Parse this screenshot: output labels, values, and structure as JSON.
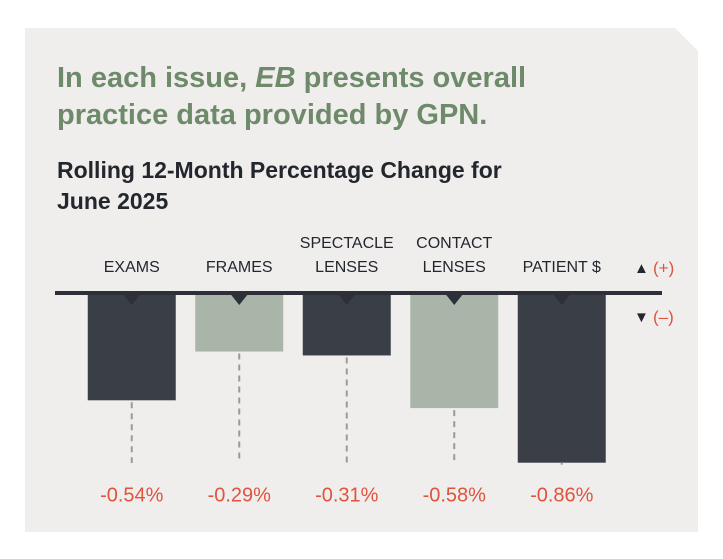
{
  "header": [
    "In each issue, ",
    "EB",
    " presents overall practice data provided by GPN."
  ],
  "chart_data": {
    "type": "bar",
    "title": "Rolling 12-Month Percentage Change for June 2025",
    "categories": [
      [
        "EXAMS"
      ],
      [
        "FRAMES"
      ],
      [
        "SPECTACLE",
        "LENSES"
      ],
      [
        "CONTACT",
        "LENSES"
      ],
      [
        "PATIENT $"
      ]
    ],
    "values": [
      -0.54,
      -0.29,
      -0.31,
      -0.58,
      -0.86
    ],
    "value_labels": [
      "-0.54%",
      "-0.29%",
      "-0.31%",
      "-0.58%",
      "-0.86%"
    ],
    "colors": [
      "#3a3e47",
      "#a9b5a8",
      "#3a3e47",
      "#a9b5a8",
      "#3a3e47"
    ],
    "positive_symbol": "▲",
    "positive_label": "(+)",
    "negative_symbol": "▼",
    "negative_label": "(–)"
  }
}
